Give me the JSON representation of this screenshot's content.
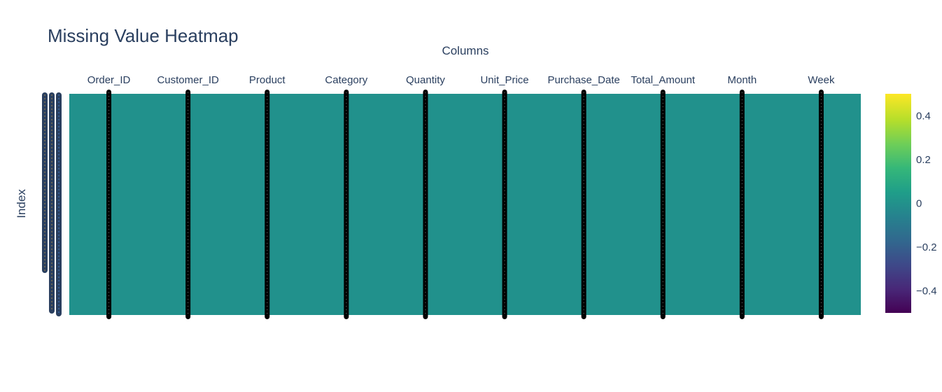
{
  "chart_data": {
    "type": "heatmap",
    "title": "Missing Value Heatmap",
    "xlabel": "Columns",
    "ylabel": "Index",
    "x_axis_position": "top",
    "columns": [
      "Order_ID",
      "Customer_ID",
      "Product",
      "Category",
      "Quantity",
      "Unit_Price",
      "Purchase_Date",
      "Total_Amount",
      "Month",
      "Week"
    ],
    "missing_value": 0,
    "colorscale": "Viridis",
    "zlim": [
      -0.5,
      0.5
    ],
    "colorbar_ticks": [
      "0.4",
      "0.2",
      "0",
      "−0.2",
      "−0.4"
    ],
    "colorbar_tick_values": [
      0.4,
      0.2,
      0,
      -0.2,
      -0.4
    ],
    "colors": {
      "cell": "#21918c",
      "text": "#2a3f5f",
      "tick_mark": "#000000",
      "ylabel_tick": "#2a3f5f"
    }
  }
}
